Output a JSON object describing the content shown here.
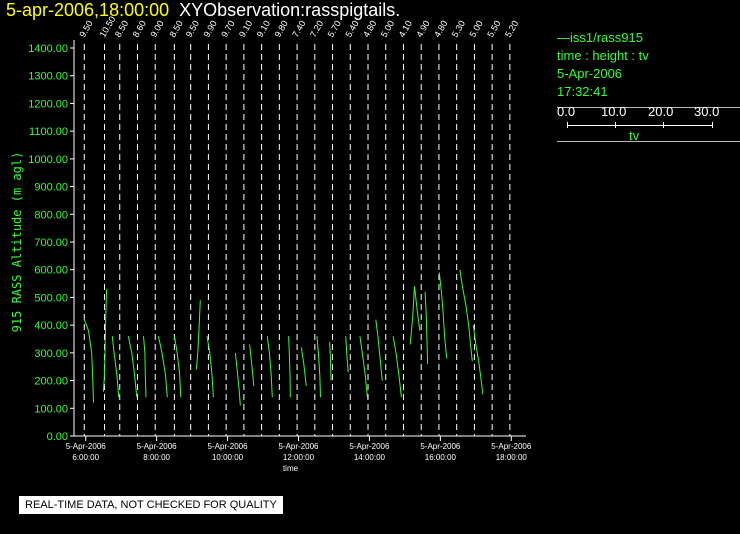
{
  "header": {
    "date_time": "5-apr-2006,18:00:00",
    "observation": "XYObservation:rasspigtails."
  },
  "legend": {
    "series_name": "iss1/rass915",
    "description": "time : height : tv",
    "date": "5-Apr-2006",
    "time": "17:32:41"
  },
  "color_scale": {
    "ticks": [
      "0.0",
      "10.0",
      "20.0",
      "30.0"
    ],
    "label": "tv"
  },
  "disclaimer": "REAL-TIME DATA, NOT CHECKED FOR QUALITY",
  "chart_data": {
    "type": "line",
    "title": "XYObservation:rasspigtails.",
    "xlabel": "time",
    "ylabel": "915 RASS Altitude (m agl)",
    "x_unit": "hours",
    "xlim": [
      5.67,
      18.33
    ],
    "ylim": [
      0,
      1400
    ],
    "y_ticks": [
      "0.00",
      "100.00",
      "200.00",
      "300.00",
      "400.00",
      "500.00",
      "600.00",
      "700.00",
      "800.00",
      "900.00",
      "1000.00",
      "1100.00",
      "1200.00",
      "1300.00",
      "1400.00"
    ],
    "x_ticks": [
      {
        "x": 6,
        "date": "5-Apr-2006",
        "time": "6:00:00"
      },
      {
        "x": 8,
        "date": "5-Apr-2006",
        "time": "8:00:00"
      },
      {
        "x": 10,
        "date": "5-Apr-2006",
        "time": "10:00:00"
      },
      {
        "x": 12,
        "date": "5-Apr-2006",
        "time": "12:00:00"
      },
      {
        "x": 14,
        "date": "5-Apr-2006",
        "time": "14:00:00"
      },
      {
        "x": 16,
        "date": "5-Apr-2006",
        "time": "16:00:00"
      },
      {
        "x": 18,
        "date": "5-Apr-2006",
        "time": "18:00:00"
      }
    ],
    "grid": "vertical-dashed",
    "profiles": [
      {
        "time": 5.96,
        "label": "9.50",
        "points": [
          [
            5.96,
            420
          ],
          [
            6.08,
            380
          ],
          [
            6.17,
            300
          ],
          [
            6.2,
            200
          ],
          [
            6.22,
            120
          ]
        ]
      },
      {
        "time": 6.53,
        "label": "10.50",
        "points": [
          [
            6.5,
            160
          ],
          [
            6.53,
            220
          ],
          [
            6.55,
            340
          ],
          [
            6.57,
            450
          ],
          [
            6.59,
            530
          ]
        ]
      },
      {
        "time": 6.96,
        "label": "8.50",
        "points": [
          [
            6.75,
            360
          ],
          [
            6.8,
            300
          ],
          [
            6.88,
            220
          ],
          [
            6.93,
            140
          ]
        ]
      },
      {
        "time": 7.46,
        "label": "8.60",
        "points": [
          [
            7.2,
            360
          ],
          [
            7.3,
            300
          ],
          [
            7.38,
            220
          ],
          [
            7.44,
            140
          ]
        ]
      },
      {
        "time": 7.96,
        "label": "9.00",
        "points": [
          [
            7.63,
            360
          ],
          [
            7.67,
            300
          ],
          [
            7.68,
            220
          ],
          [
            7.7,
            140
          ]
        ]
      },
      {
        "time": 8.5,
        "label": "8.50",
        "points": [
          [
            8.05,
            360
          ],
          [
            8.15,
            300
          ],
          [
            8.25,
            220
          ],
          [
            8.3,
            140
          ]
        ]
      },
      {
        "time": 8.96,
        "label": "9.50",
        "points": [
          [
            8.5,
            360
          ],
          [
            8.58,
            300
          ],
          [
            8.65,
            220
          ],
          [
            8.68,
            140
          ]
        ]
      },
      {
        "time": 9.46,
        "label": "9.90",
        "points": [
          [
            9.12,
            240
          ],
          [
            9.16,
            300
          ],
          [
            9.2,
            400
          ],
          [
            9.23,
            490
          ]
        ]
      },
      {
        "time": 9.96,
        "label": "9.70",
        "points": [
          [
            9.42,
            360
          ],
          [
            9.5,
            300
          ],
          [
            9.56,
            220
          ],
          [
            9.6,
            140
          ]
        ]
      },
      {
        "time": 10.46,
        "label": "9.10",
        "points": [
          [
            10.22,
            300
          ],
          [
            10.27,
            240
          ],
          [
            10.33,
            160
          ],
          [
            10.36,
            110
          ]
        ]
      },
      {
        "time": 10.96,
        "label": "9.10",
        "points": [
          [
            10.62,
            330
          ],
          [
            10.68,
            260
          ],
          [
            10.74,
            180
          ]
        ]
      },
      {
        "time": 11.46,
        "label": "9.80",
        "points": [
          [
            11.12,
            360
          ],
          [
            11.18,
            300
          ],
          [
            11.23,
            220
          ],
          [
            11.26,
            140
          ]
        ]
      },
      {
        "time": 11.96,
        "label": "7.40",
        "points": [
          [
            11.72,
            360
          ],
          [
            11.74,
            300
          ],
          [
            11.76,
            220
          ],
          [
            11.77,
            140
          ]
        ]
      },
      {
        "time": 12.46,
        "label": "7.20",
        "points": [
          [
            12.08,
            320
          ],
          [
            12.15,
            260
          ],
          [
            12.22,
            180
          ]
        ]
      },
      {
        "time": 12.96,
        "label": "5.70",
        "points": [
          [
            12.52,
            360
          ],
          [
            12.56,
            300
          ],
          [
            12.6,
            220
          ],
          [
            12.62,
            140
          ]
        ]
      },
      {
        "time": 13.46,
        "label": "5.40",
        "points": [
          [
            12.88,
            340
          ],
          [
            12.9,
            280
          ],
          [
            12.92,
            200
          ]
        ]
      },
      {
        "time": 13.96,
        "label": "4.80",
        "points": [
          [
            13.33,
            360
          ],
          [
            13.36,
            300
          ],
          [
            13.4,
            230
          ]
        ]
      },
      {
        "time": 14.46,
        "label": "5.00",
        "points": [
          [
            13.73,
            360
          ],
          [
            13.8,
            300
          ],
          [
            13.88,
            220
          ],
          [
            13.95,
            130
          ]
        ]
      },
      {
        "time": 14.96,
        "label": "4.10",
        "points": [
          [
            14.18,
            420
          ],
          [
            14.24,
            360
          ],
          [
            14.3,
            280
          ],
          [
            14.36,
            200
          ]
        ]
      },
      {
        "time": 15.46,
        "label": "4.90",
        "points": [
          [
            14.67,
            360
          ],
          [
            14.75,
            300
          ],
          [
            14.83,
            220
          ],
          [
            14.9,
            140
          ]
        ]
      },
      {
        "time": 15.96,
        "label": "4.80",
        "points": [
          [
            15.15,
            330
          ],
          [
            15.22,
            430
          ],
          [
            15.27,
            540
          ],
          [
            15.35,
            450
          ],
          [
            15.42,
            380
          ]
        ]
      },
      {
        "time": 16.46,
        "label": "5.30",
        "points": [
          [
            15.57,
            520
          ],
          [
            15.6,
            440
          ],
          [
            15.62,
            350
          ],
          [
            15.64,
            260
          ]
        ]
      },
      {
        "time": 16.96,
        "label": "5.00",
        "points": [
          [
            15.97,
            590
          ],
          [
            16.03,
            520
          ],
          [
            16.08,
            440
          ],
          [
            16.12,
            360
          ],
          [
            16.18,
            280
          ]
        ]
      },
      {
        "time": 17.46,
        "label": "5.50",
        "points": [
          [
            16.55,
            600
          ],
          [
            16.62,
            540
          ],
          [
            16.72,
            470
          ],
          [
            16.8,
            400
          ],
          [
            16.85,
            330
          ],
          [
            16.9,
            270
          ]
        ]
      },
      {
        "time": 17.96,
        "label": "5.20",
        "points": [
          [
            16.93,
            400
          ],
          [
            17.0,
            330
          ],
          [
            17.08,
            270
          ],
          [
            17.15,
            200
          ],
          [
            17.2,
            150
          ]
        ]
      }
    ]
  }
}
